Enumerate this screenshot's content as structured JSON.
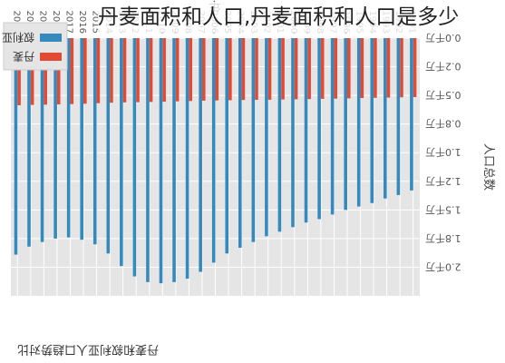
{
  "overlay_caption": "丹麦面积和人口,丹麦面积和人口是多少",
  "chart_data": {
    "type": "bar",
    "title": "丹麦和叙利亚人口趋势对比",
    "xlabel": "年",
    "ylabel": "人口总数",
    "ylim": [
      0,
      22500000
    ],
    "grid": true,
    "legend_position": "top-left",
    "orientation": "rotated-180",
    "categories": [
      "1991",
      "1992",
      "1993",
      "1994",
      "1995",
      "1996",
      "1997",
      "1998",
      "1999",
      "2000",
      "2001",
      "2002",
      "2003",
      "2004",
      "2005",
      "2006",
      "2007",
      "2008",
      "2009",
      "2010",
      "2011",
      "2012",
      "2013",
      "2014",
      "2015",
      "2016",
      "2017",
      "2018",
      "2019",
      "2020",
      "2021"
    ],
    "y_ticks": [
      0,
      2500000,
      5000000,
      7500000,
      10000000,
      12500000,
      15000000,
      17500000,
      20000000
    ],
    "y_tick_labels": [
      "0.0千万",
      "0.2千万",
      "0.5千万",
      "0.8千万",
      "1.0千万",
      "1.2千万",
      "1.5千万",
      "1.8千万",
      "2.0千万"
    ],
    "series": [
      {
        "name": "丹麦",
        "color": "#e24a33",
        "values": [
          5150000,
          5170000,
          5190000,
          5210000,
          5230000,
          5260000,
          5280000,
          5300000,
          5320000,
          5340000,
          5360000,
          5380000,
          5390000,
          5400000,
          5420000,
          5440000,
          5460000,
          5490000,
          5520000,
          5550000,
          5570000,
          5590000,
          5610000,
          5640000,
          5680000,
          5730000,
          5760000,
          5790000,
          5810000,
          5830000,
          5860000
        ]
      },
      {
        "name": "叙利亚",
        "color": "#348abd",
        "values": [
          13300000,
          13700000,
          14000000,
          14400000,
          14700000,
          15000000,
          15400000,
          15800000,
          16100000,
          16500000,
          16900000,
          17300000,
          17800000,
          18300000,
          18800000,
          19600000,
          20400000,
          21000000,
          21300000,
          21400000,
          21300000,
          20800000,
          19900000,
          18800000,
          18000000,
          17600000,
          17400000,
          17500000,
          17800000,
          18200000,
          18900000
        ]
      }
    ]
  },
  "colors": {
    "plot_bg": "#e5e5e5",
    "grid": "#ffffff",
    "text": "#555555"
  }
}
